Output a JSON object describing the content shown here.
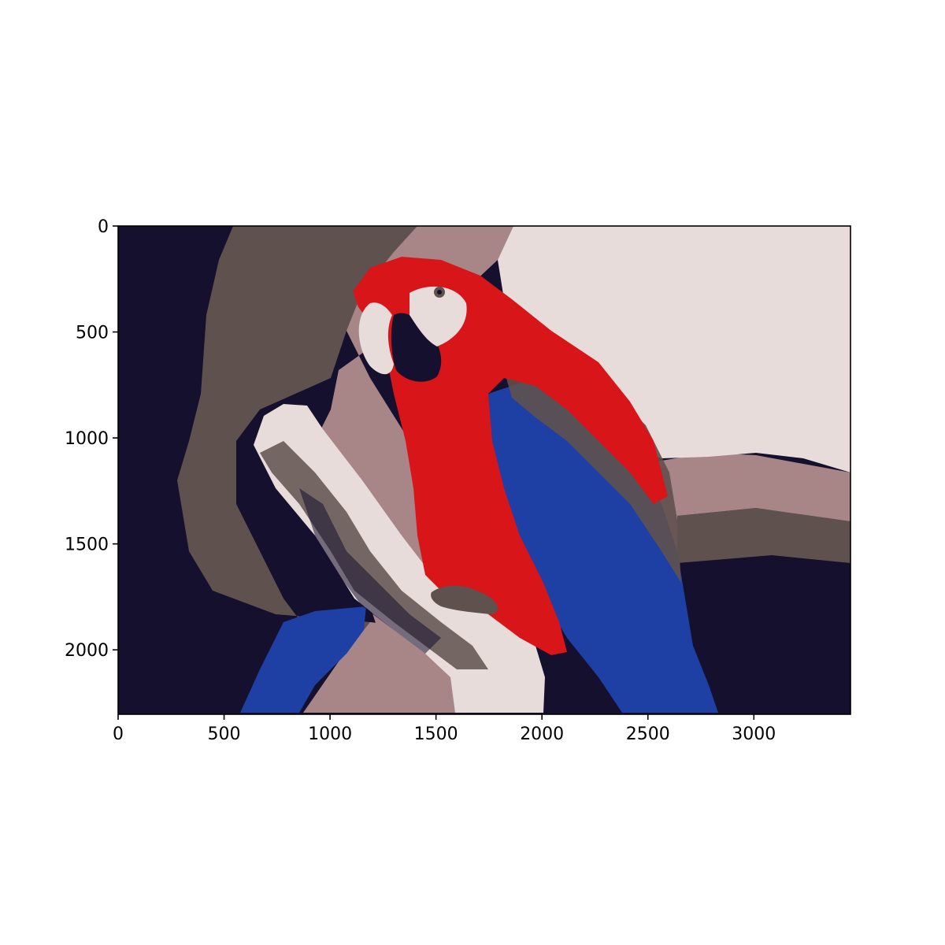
{
  "chart_data": {
    "type": "image",
    "title": "",
    "xlabel": "",
    "ylabel": "",
    "xlim": [
      0,
      3456
    ],
    "ylim": [
      2304,
      0
    ],
    "x_ticks": [
      0,
      500,
      1000,
      1500,
      2000,
      2500,
      3000
    ],
    "y_ticks": [
      0,
      500,
      1000,
      1500,
      2000
    ],
    "x_tick_labels": [
      "0",
      "500",
      "1000",
      "1500",
      "2000",
      "2500",
      "3000"
    ],
    "y_tick_labels": [
      "0",
      "500",
      "1000",
      "1500",
      "2000"
    ],
    "grid": false,
    "image_subject": "parrot-on-branch",
    "palette": {
      "dark_navy": "#14102E",
      "dark_taupe": "#5F514E",
      "mauve": "#A88687",
      "light_pink": "#E8DCDA",
      "red": "#D8161A",
      "blue": "#1E3FA4"
    }
  }
}
